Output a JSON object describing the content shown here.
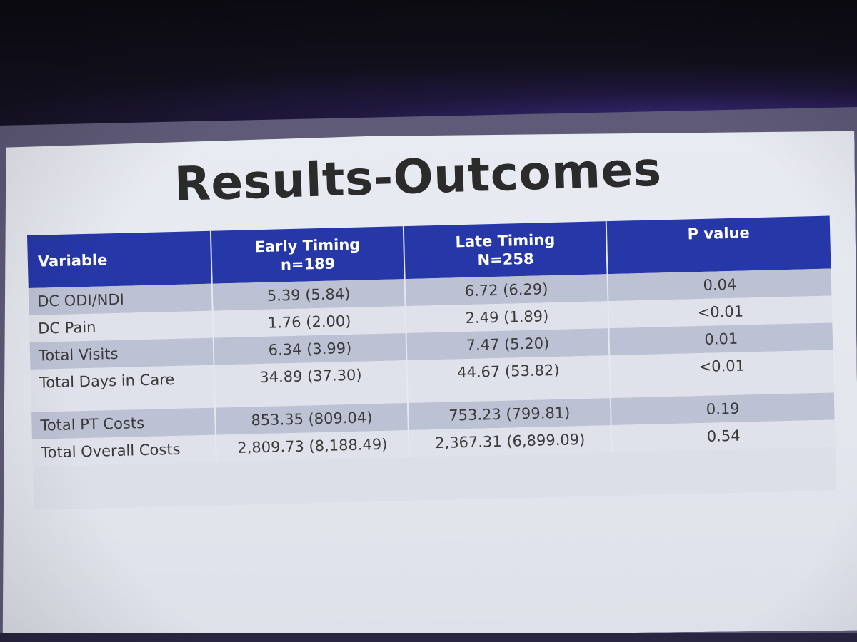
{
  "slide": {
    "title": "Results-Outcomes"
  },
  "table": {
    "headers": [
      {
        "line1": "Variable",
        "line2": ""
      },
      {
        "line1": "Early Timing",
        "line2": "n=189"
      },
      {
        "line1": "Late Timing",
        "line2": "N=258"
      },
      {
        "line1": "P value",
        "line2": ""
      }
    ],
    "rows": [
      {
        "variable": "DC ODI/NDI",
        "early": "5.39 (5.84)",
        "late": "6.72 (6.29)",
        "p": "0.04"
      },
      {
        "variable": "DC Pain",
        "early": "1.76 (2.00)",
        "late": "2.49 (1.89)",
        "p": "<0.01"
      },
      {
        "variable": "Total Visits",
        "early": "6.34 (3.99)",
        "late": "7.47 (5.20)",
        "p": "0.01"
      },
      {
        "variable": "Total Days in Care",
        "early": "34.89 (37.30)",
        "late": "44.67 (53.82)",
        "p": "<0.01"
      },
      {
        "variable": "Total PT Costs",
        "early": "853.35 (809.04)",
        "late": "753.23 (799.81)",
        "p": "0.19"
      },
      {
        "variable": "Total Overall Costs",
        "early": "2,809.73 (8,188.49)",
        "late": "2,367.31 (6,899.09)",
        "p": "0.54"
      }
    ]
  },
  "colors": {
    "header_bg": "#2637a8",
    "shaded_row": "#bcc1d4",
    "slide_bg": "#e6e8ef"
  }
}
